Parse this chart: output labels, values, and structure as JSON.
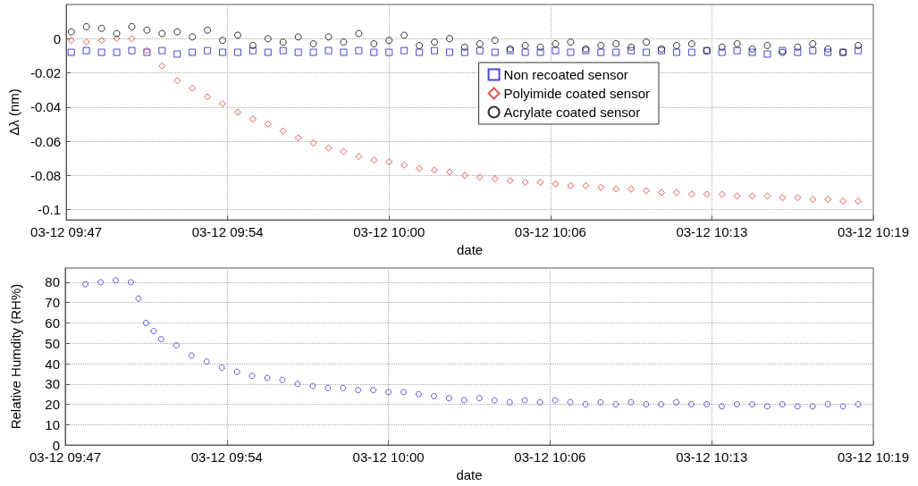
{
  "chart_data": [
    {
      "type": "scatter",
      "xlabel": "date",
      "ylabel": "Δλ (nm)",
      "xlim": [
        "--03-12T09:47:12",
        "--03-12T10:19:12"
      ],
      "xticks": [
        {
          "value": "--03-12T09:47:12",
          "label": "03-12 09:47"
        },
        {
          "value": "--03-12T09:53:36",
          "label": "03-12 09:54"
        },
        {
          "value": "--03-12T10:00:00",
          "label": "03-12 10:00"
        },
        {
          "value": "--03-12T10:06:24",
          "label": "03-12 10:06"
        },
        {
          "value": "--03-12T10:12:48",
          "label": "03-12 10:13"
        },
        {
          "value": "--03-12T10:19:12",
          "label": "03-12 10:19"
        }
      ],
      "ylim": [
        -0.106,
        0.02
      ],
      "yticks": [
        -0.1,
        -0.08,
        -0.06,
        -0.04,
        -0.02,
        0
      ],
      "grid": true,
      "legend": "top right",
      "x": [
        "--03-12T09:47:24",
        "--03-12T09:48:00",
        "--03-12T09:48:36",
        "--03-12T09:49:12",
        "--03-12T09:49:48",
        "--03-12T09:50:24",
        "--03-12T09:51:00",
        "--03-12T09:51:36",
        "--03-12T09:52:12",
        "--03-12T09:52:48",
        "--03-12T09:53:24",
        "--03-12T09:54:00",
        "--03-12T09:54:36",
        "--03-12T09:55:12",
        "--03-12T09:55:48",
        "--03-12T09:56:24",
        "--03-12T09:57:00",
        "--03-12T09:57:36",
        "--03-12T09:58:12",
        "--03-12T09:58:48",
        "--03-12T09:59:24",
        "--03-12T10:00:00",
        "--03-12T10:00:36",
        "--03-12T10:01:12",
        "--03-12T10:01:48",
        "--03-12T10:02:24",
        "--03-12T10:03:00",
        "--03-12T10:03:36",
        "--03-12T10:04:12",
        "--03-12T10:04:48",
        "--03-12T10:05:24",
        "--03-12T10:06:00",
        "--03-12T10:06:36",
        "--03-12T10:07:12",
        "--03-12T10:07:48",
        "--03-12T10:08:24",
        "--03-12T10:09:00",
        "--03-12T10:09:36",
        "--03-12T10:10:12",
        "--03-12T10:10:48",
        "--03-12T10:11:24",
        "--03-12T10:12:00",
        "--03-12T10:12:36",
        "--03-12T10:13:12",
        "--03-12T10:13:48",
        "--03-12T10:14:24",
        "--03-12T10:15:00",
        "--03-12T10:15:36",
        "--03-12T10:16:12",
        "--03-12T10:16:48",
        "--03-12T10:17:24",
        "--03-12T10:18:00",
        "--03-12T10:18:36"
      ],
      "series": [
        {
          "name": "Non recoated sensor",
          "color": "#1a1acc",
          "marker": "square",
          "values": [
            -0.008,
            -0.007,
            -0.008,
            -0.008,
            -0.007,
            -0.008,
            -0.007,
            -0.009,
            -0.008,
            -0.007,
            -0.008,
            -0.008,
            -0.007,
            -0.008,
            -0.007,
            -0.008,
            -0.008,
            -0.007,
            -0.008,
            -0.007,
            -0.008,
            -0.008,
            -0.007,
            -0.008,
            -0.007,
            -0.008,
            -0.008,
            -0.007,
            -0.008,
            -0.007,
            -0.008,
            -0.008,
            -0.007,
            -0.008,
            -0.007,
            -0.008,
            -0.008,
            -0.007,
            -0.008,
            -0.007,
            -0.008,
            -0.008,
            -0.007,
            -0.008,
            -0.007,
            -0.008,
            -0.009,
            -0.007,
            -0.008,
            -0.007,
            -0.008,
            -0.008,
            -0.007
          ]
        },
        {
          "name": "Polyimide coated sensor",
          "color": "#e03030",
          "marker": "diamond",
          "values": [
            -0.001,
            -0.002,
            -0.001,
            0,
            0,
            -0.007,
            -0.016,
            -0.0245,
            -0.029,
            -0.034,
            -0.038,
            -0.043,
            -0.047,
            -0.05,
            -0.054,
            -0.058,
            -0.061,
            -0.064,
            -0.066,
            -0.069,
            -0.071,
            -0.072,
            -0.074,
            -0.076,
            -0.077,
            -0.078,
            -0.08,
            -0.081,
            -0.082,
            -0.083,
            -0.084,
            -0.084,
            -0.085,
            -0.086,
            -0.086,
            -0.087,
            -0.088,
            -0.088,
            -0.089,
            -0.09,
            -0.09,
            -0.091,
            -0.091,
            -0.091,
            -0.092,
            -0.092,
            -0.092,
            -0.093,
            -0.093,
            -0.094,
            -0.094,
            -0.095,
            -0.095
          ]
        },
        {
          "name": "Acrylate coated sensor",
          "color": "#000000",
          "marker": "circle",
          "values": [
            0.004,
            0.007,
            0.006,
            0.003,
            0.007,
            0.005,
            0.003,
            0.004,
            0.001,
            0.005,
            -0.001,
            0.002,
            -0.004,
            0,
            -0.002,
            0.001,
            -0.003,
            0.001,
            -0.002,
            0.003,
            -0.003,
            -0.001,
            0.002,
            -0.004,
            -0.002,
            0,
            -0.005,
            -0.003,
            -0.001,
            -0.006,
            -0.004,
            -0.005,
            -0.003,
            -0.002,
            -0.006,
            -0.004,
            -0.003,
            -0.005,
            -0.002,
            -0.006,
            -0.004,
            -0.003,
            -0.007,
            -0.005,
            -0.003,
            -0.006,
            -0.004,
            -0.008,
            -0.005,
            -0.003,
            -0.006,
            -0.008,
            -0.004
          ]
        }
      ]
    },
    {
      "type": "scatter",
      "xlabel": "date",
      "ylabel": "Relative Humdity (RH%)",
      "xlim": [
        "--03-12T09:47:12",
        "--03-12T10:19:12"
      ],
      "xticks": [
        {
          "value": "--03-12T09:47:12",
          "label": "03-12 09:47"
        },
        {
          "value": "--03-12T09:53:36",
          "label": "03-12 09:54"
        },
        {
          "value": "--03-12T10:00:00",
          "label": "03-12 10:00"
        },
        {
          "value": "--03-12T10:06:24",
          "label": "03-12 10:06"
        },
        {
          "value": "--03-12T10:12:48",
          "label": "03-12 10:13"
        },
        {
          "value": "--03-12T10:19:12",
          "label": "03-12 10:19"
        }
      ],
      "ylim": [
        0,
        87
      ],
      "yticks": [
        0,
        10,
        20,
        30,
        40,
        50,
        60,
        70,
        80
      ],
      "grid": true,
      "series": [
        {
          "color": "#3535c8",
          "marker": "circle",
          "x": [
            "--03-12T09:48:00",
            "--03-12T09:48:36",
            "--03-12T09:49:12",
            "--03-12T09:49:48",
            "--03-12T09:50:06",
            "--03-12T09:50:24",
            "--03-12T09:50:42",
            "--03-12T09:51:00",
            "--03-12T09:51:36",
            "--03-12T09:52:12",
            "--03-12T09:52:48",
            "--03-12T09:53:24",
            "--03-12T09:54:00",
            "--03-12T09:54:36",
            "--03-12T09:55:12",
            "--03-12T09:55:48",
            "--03-12T09:56:24",
            "--03-12T09:57:00",
            "--03-12T09:57:36",
            "--03-12T09:58:12",
            "--03-12T09:58:48",
            "--03-12T09:59:24",
            "--03-12T10:00:00",
            "--03-12T10:00:36",
            "--03-12T10:01:12",
            "--03-12T10:01:48",
            "--03-12T10:02:24",
            "--03-12T10:03:00",
            "--03-12T10:03:36",
            "--03-12T10:04:12",
            "--03-12T10:04:48",
            "--03-12T10:05:24",
            "--03-12T10:06:00",
            "--03-12T10:06:36",
            "--03-12T10:07:12",
            "--03-12T10:07:48",
            "--03-12T10:08:24",
            "--03-12T10:09:00",
            "--03-12T10:09:36",
            "--03-12T10:10:12",
            "--03-12T10:10:48",
            "--03-12T10:11:24",
            "--03-12T10:12:00",
            "--03-12T10:12:36",
            "--03-12T10:13:12",
            "--03-12T10:13:48",
            "--03-12T10:14:24",
            "--03-12T10:15:00",
            "--03-12T10:15:36",
            "--03-12T10:16:12",
            "--03-12T10:16:48",
            "--03-12T10:17:24",
            "--03-12T10:18:00",
            "--03-12T10:18:36"
          ],
          "values": [
            79,
            80,
            81,
            80,
            72,
            60,
            56,
            52,
            49,
            44,
            41,
            38,
            36,
            34,
            33,
            32,
            30,
            29,
            28,
            28,
            27,
            27,
            26,
            26,
            25,
            24,
            23,
            22,
            23,
            22,
            21,
            22,
            21,
            22,
            21,
            20,
            21,
            20,
            21,
            20,
            20,
            21,
            20,
            20,
            19,
            20,
            20,
            19,
            20,
            19,
            19,
            20,
            19,
            20
          ]
        }
      ]
    }
  ]
}
